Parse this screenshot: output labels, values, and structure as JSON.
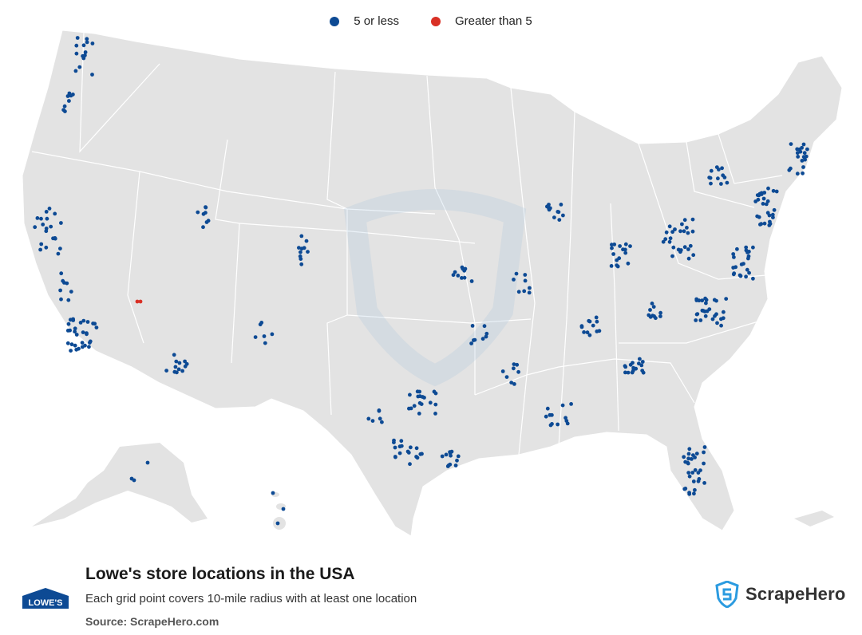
{
  "legend": {
    "items": [
      {
        "label": "5 or less",
        "color": "#0d4a94"
      },
      {
        "label": "Greater than 5",
        "color": "#d93025"
      }
    ]
  },
  "title": "Lowe's store locations in the USA",
  "subtitle": "Each grid point covers 10-mile radius with at least one location",
  "source": "Source: ScrapeHero.com",
  "brand_logo_text": "LOWE'S",
  "brand_logo_color": "#0d4a94",
  "scrapehero_label": "ScrapeHero",
  "scrapehero_color": "#2b9be0",
  "map": {
    "land_color": "#e3e3e3",
    "border_color": "#ffffff",
    "watermark": "shield-icon"
  }
}
